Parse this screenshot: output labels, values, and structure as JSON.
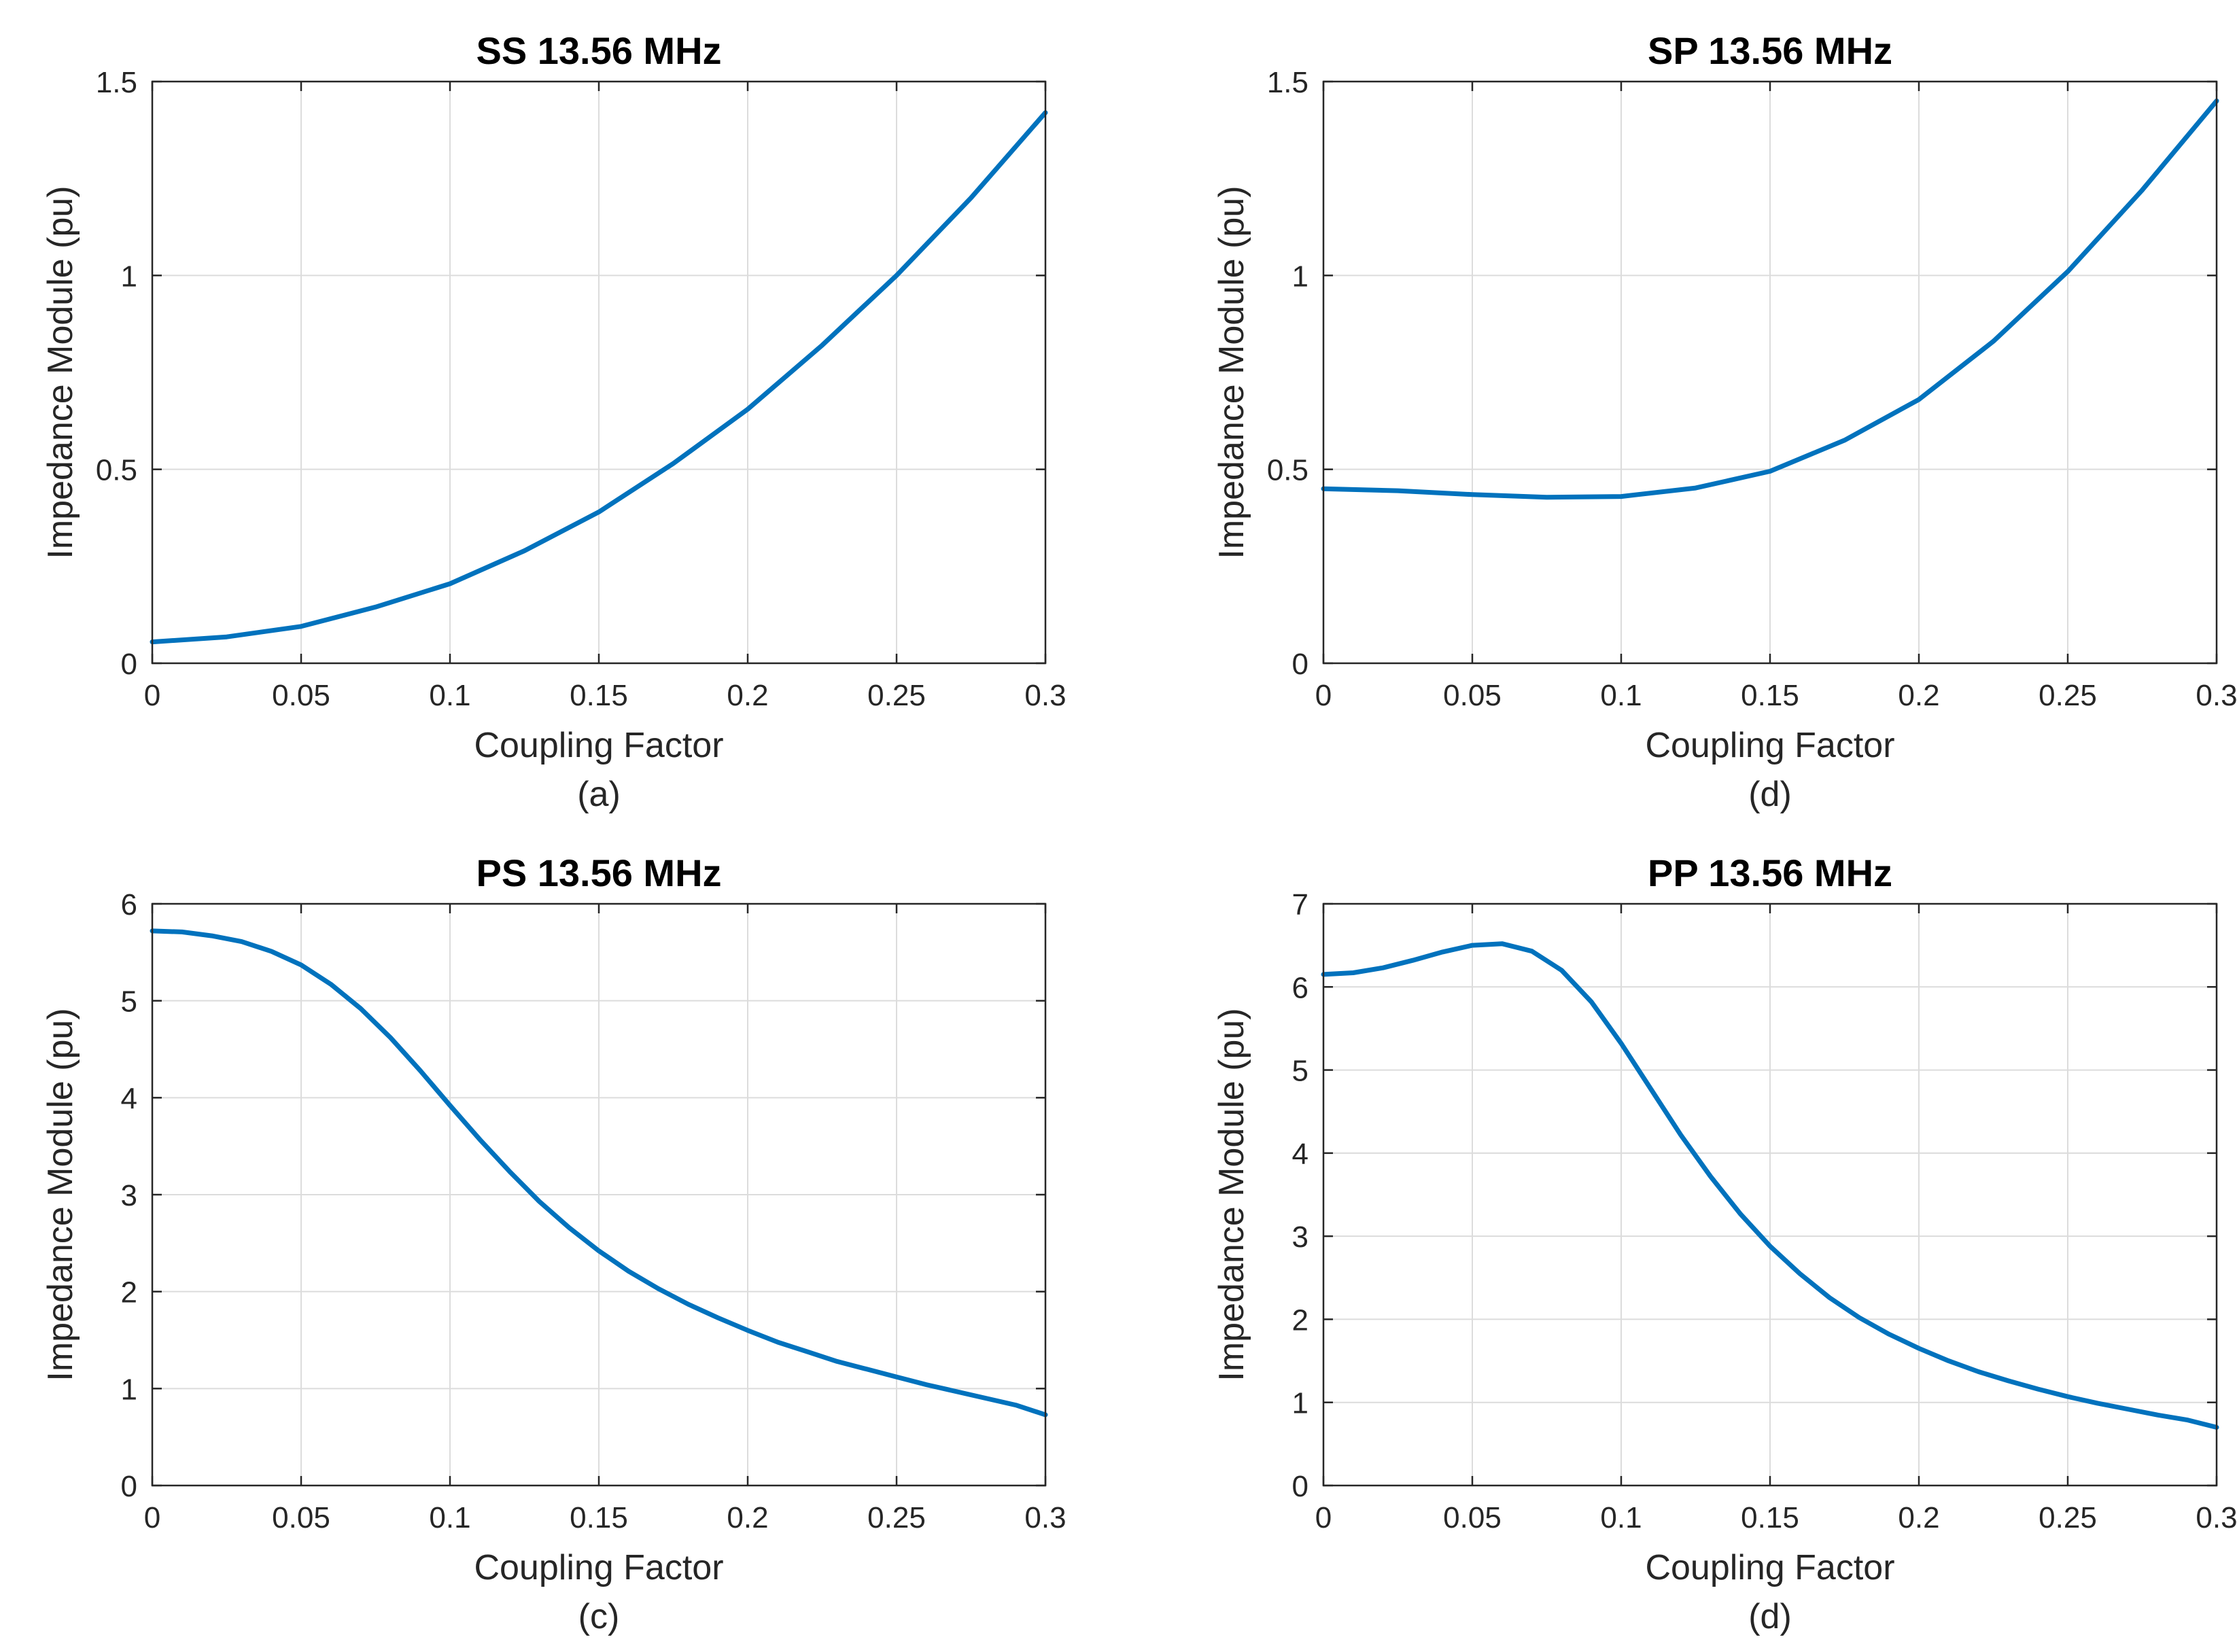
{
  "colors": {
    "line": "#0072bd",
    "grid": "#dcdcdc",
    "axis": "#262626"
  },
  "chart_data": [
    {
      "type": "line",
      "title": "SS 13.56 MHz",
      "xlabel": "Coupling Factor",
      "ylabel": "Impedance Module (pu)",
      "caption": "(a)",
      "xlim": [
        0,
        0.3
      ],
      "ylim": [
        0,
        1.5
      ],
      "xticks": [
        0,
        0.05,
        0.1,
        0.15,
        0.2,
        0.25,
        0.3
      ],
      "xtick_labels": [
        "0",
        "0.05",
        "0.1",
        "0.15",
        "0.2",
        "0.25",
        "0.3"
      ],
      "yticks": [
        0,
        0.5,
        1,
        1.5
      ],
      "ytick_labels": [
        "0",
        "0.5",
        "1",
        "1.5"
      ],
      "grid": true,
      "series": [
        {
          "name": "SS",
          "x": [
            0,
            0.025,
            0.05,
            0.075,
            0.1,
            0.125,
            0.15,
            0.175,
            0.2,
            0.225,
            0.25,
            0.275,
            0.3
          ],
          "y": [
            0.055,
            0.068,
            0.095,
            0.145,
            0.205,
            0.29,
            0.39,
            0.515,
            0.655,
            0.82,
            1.0,
            1.2,
            1.42
          ]
        }
      ]
    },
    {
      "type": "line",
      "title": "SP 13.56 MHz",
      "xlabel": "Coupling Factor",
      "ylabel": "Impedance Module (pu)",
      "caption": "(d)",
      "xlim": [
        0,
        0.3
      ],
      "ylim": [
        0,
        1.5
      ],
      "xticks": [
        0,
        0.05,
        0.1,
        0.15,
        0.2,
        0.25,
        0.3
      ],
      "xtick_labels": [
        "0",
        "0.05",
        "0.1",
        "0.15",
        "0.2",
        "0.25",
        "0.3"
      ],
      "yticks": [
        0,
        0.5,
        1,
        1.5
      ],
      "ytick_labels": [
        "0",
        "0.5",
        "1",
        "1.5"
      ],
      "grid": true,
      "series": [
        {
          "name": "SP",
          "x": [
            0,
            0.025,
            0.05,
            0.075,
            0.1,
            0.125,
            0.15,
            0.175,
            0.2,
            0.225,
            0.25,
            0.275,
            0.3
          ],
          "y": [
            0.45,
            0.445,
            0.435,
            0.428,
            0.43,
            0.452,
            0.495,
            0.575,
            0.68,
            0.83,
            1.01,
            1.22,
            1.45
          ]
        }
      ]
    },
    {
      "type": "line",
      "title": "PS 13.56 MHz",
      "xlabel": "Coupling Factor",
      "ylabel": "Impedance Module (pu)",
      "caption": "(c)",
      "xlim": [
        0,
        0.3
      ],
      "ylim": [
        0,
        6
      ],
      "xticks": [
        0,
        0.05,
        0.1,
        0.15,
        0.2,
        0.25,
        0.3
      ],
      "xtick_labels": [
        "0",
        "0.05",
        "0.1",
        "0.15",
        "0.2",
        "0.25",
        "0.3"
      ],
      "yticks": [
        0,
        1,
        2,
        3,
        4,
        5,
        6
      ],
      "ytick_labels": [
        "0",
        "1",
        "2",
        "3",
        "4",
        "5",
        "6"
      ],
      "grid": true,
      "series": [
        {
          "name": "PS",
          "x": [
            0,
            0.01,
            0.02,
            0.03,
            0.04,
            0.05,
            0.06,
            0.07,
            0.08,
            0.09,
            0.1,
            0.11,
            0.12,
            0.13,
            0.14,
            0.15,
            0.16,
            0.17,
            0.18,
            0.19,
            0.2,
            0.21,
            0.22,
            0.23,
            0.24,
            0.25,
            0.26,
            0.27,
            0.28,
            0.29,
            0.3
          ],
          "y": [
            5.72,
            5.71,
            5.67,
            5.61,
            5.51,
            5.37,
            5.17,
            4.92,
            4.62,
            4.28,
            3.92,
            3.57,
            3.24,
            2.93,
            2.66,
            2.42,
            2.21,
            2.03,
            1.87,
            1.73,
            1.6,
            1.48,
            1.38,
            1.28,
            1.2,
            1.12,
            1.04,
            0.97,
            0.9,
            0.83,
            0.73
          ]
        }
      ]
    },
    {
      "type": "line",
      "title": "PP 13.56 MHz",
      "xlabel": "Coupling Factor",
      "ylabel": "Impedance Module (pu)",
      "caption": "(d)",
      "xlim": [
        0,
        0.3
      ],
      "ylim": [
        0,
        7
      ],
      "xticks": [
        0,
        0.05,
        0.1,
        0.15,
        0.2,
        0.25,
        0.3
      ],
      "xtick_labels": [
        "0",
        "0.05",
        "0.1",
        "0.15",
        "0.2",
        "0.25",
        "0.3"
      ],
      "yticks": [
        0,
        1,
        2,
        3,
        4,
        5,
        6,
        7
      ],
      "ytick_labels": [
        "0",
        "1",
        "2",
        "3",
        "4",
        "5",
        "6",
        "7"
      ],
      "grid": true,
      "series": [
        {
          "name": "PP",
          "x": [
            0,
            0.01,
            0.02,
            0.03,
            0.04,
            0.05,
            0.06,
            0.07,
            0.08,
            0.09,
            0.1,
            0.11,
            0.12,
            0.13,
            0.14,
            0.15,
            0.16,
            0.17,
            0.18,
            0.19,
            0.2,
            0.21,
            0.22,
            0.23,
            0.24,
            0.25,
            0.26,
            0.27,
            0.28,
            0.29,
            0.3
          ],
          "y": [
            6.15,
            6.17,
            6.23,
            6.32,
            6.42,
            6.5,
            6.52,
            6.43,
            6.2,
            5.82,
            5.32,
            4.77,
            4.22,
            3.72,
            3.27,
            2.88,
            2.55,
            2.26,
            2.02,
            1.82,
            1.65,
            1.5,
            1.37,
            1.26,
            1.16,
            1.07,
            0.99,
            0.92,
            0.85,
            0.79,
            0.7
          ]
        }
      ]
    }
  ]
}
